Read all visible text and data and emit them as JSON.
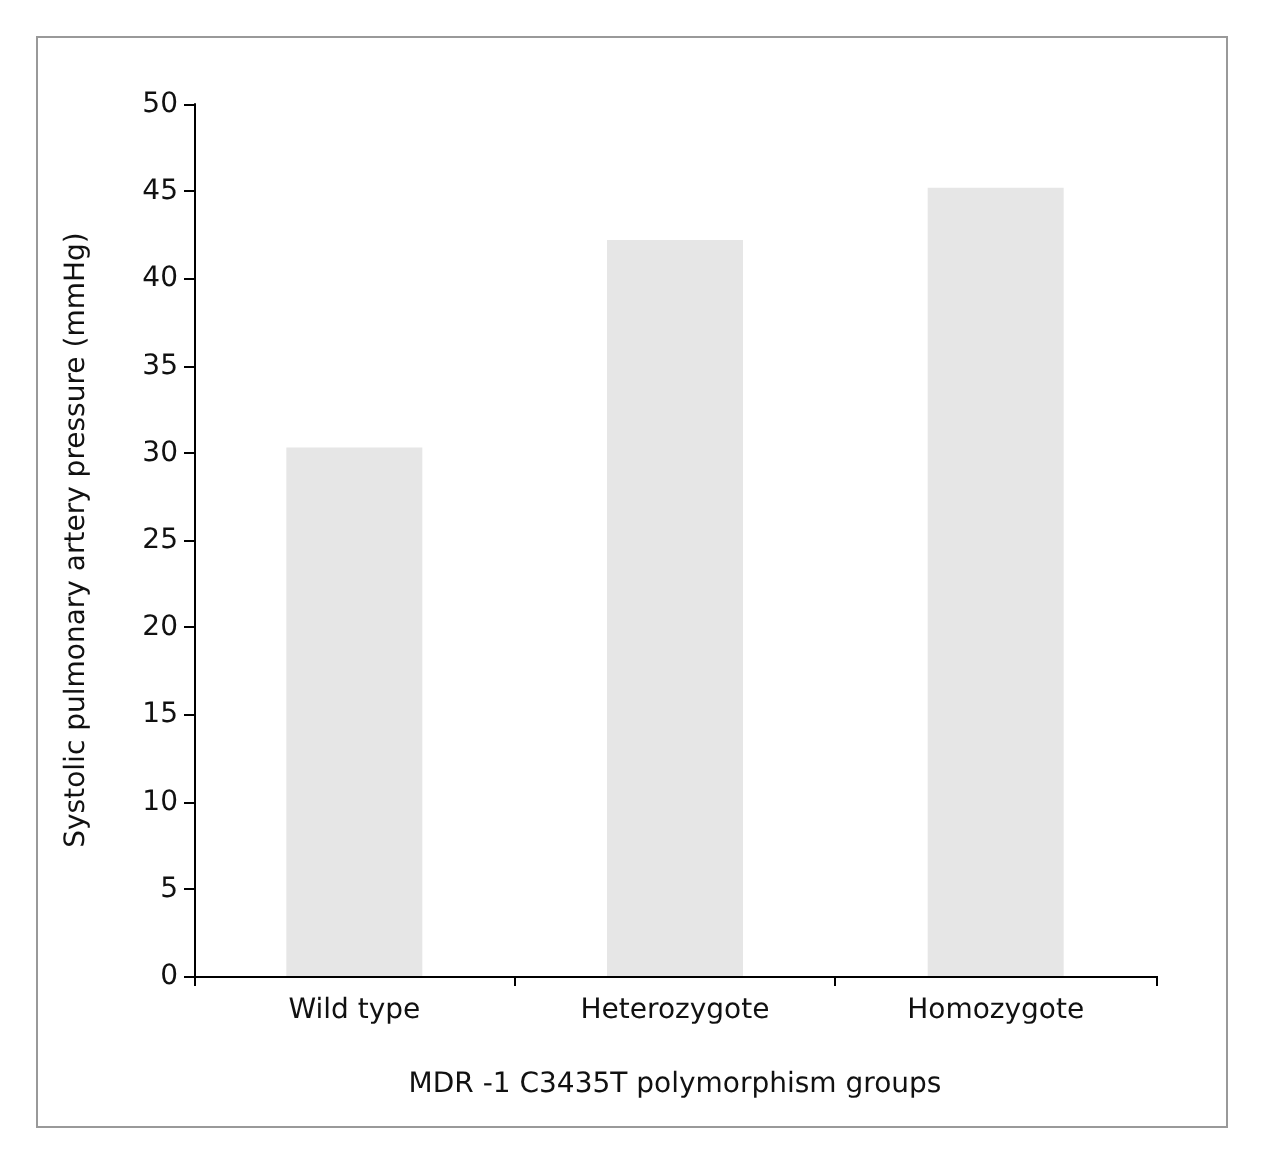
{
  "chart_data": {
    "type": "bar",
    "xlabel": "MDR -1 C3435T polymorphism groups",
    "ylabel": "Systolic pulmonary artery pressure (mmHg)",
    "categories": [
      "Wild type",
      "Heterozygote",
      "Homozygote"
    ],
    "values": [
      30.3,
      42.2,
      45.2
    ],
    "color": "#e6e6e6",
    "ylim": [
      0,
      50
    ],
    "yticks": [
      0,
      5,
      10,
      15,
      20,
      25,
      30,
      35,
      40,
      45,
      50
    ],
    "grid": false
  }
}
